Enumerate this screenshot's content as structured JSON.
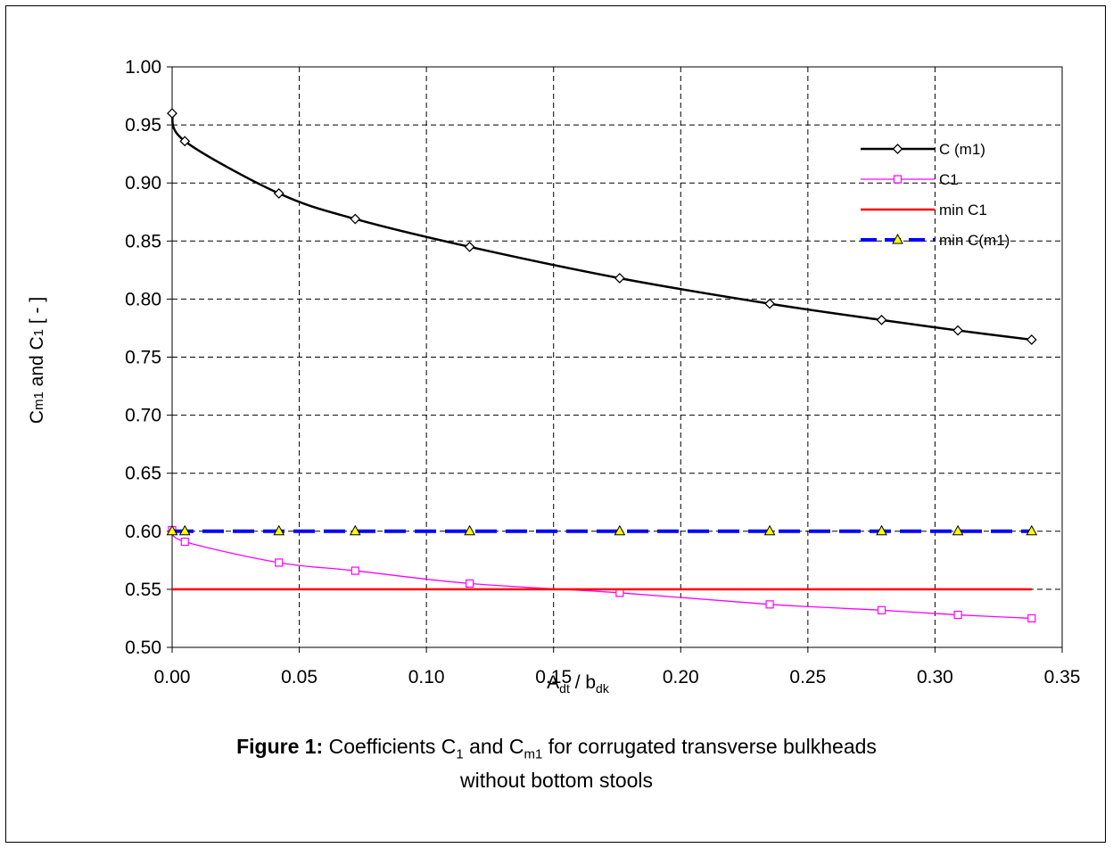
{
  "caption": {
    "label": "Figure 1:",
    "line1_a": " Coefficients C",
    "line1_sub1": "1",
    "line1_b": " and C",
    "line1_sub2": "m1",
    "line1_c": " for corrugated transverse bulkheads",
    "line2": "without bottom stools"
  },
  "chart_data": {
    "type": "line",
    "xlabel": {
      "main": "A",
      "sub1": "dt",
      "mid": " / b",
      "sub2": "dk"
    },
    "ylabel": {
      "a": "C",
      "sub1": "m1",
      "b": " and C",
      "sub2": "1",
      "c": "  [ - ]"
    },
    "xlim": [
      0,
      0.35
    ],
    "ylim": [
      0.5,
      1.0
    ],
    "xticks": [
      "0.00",
      "0.05",
      "0.10",
      "0.15",
      "0.20",
      "0.25",
      "0.30",
      "0.35"
    ],
    "yticks": [
      "0.50",
      "0.55",
      "0.60",
      "0.65",
      "0.70",
      "0.75",
      "0.80",
      "0.85",
      "0.90",
      "0.95",
      "1.00"
    ],
    "grid": true,
    "legend_position": "top-right",
    "series": [
      {
        "name": "C (m1)",
        "color": "#000000",
        "marker": "diamond",
        "style": "solid",
        "x": [
          0.0,
          0.005,
          0.042,
          0.072,
          0.117,
          0.176,
          0.235,
          0.279,
          0.309,
          0.338
        ],
        "y": [
          0.96,
          0.936,
          0.891,
          0.869,
          0.845,
          0.818,
          0.796,
          0.782,
          0.773,
          0.765
        ]
      },
      {
        "name": "C1",
        "color": "#ff00ff",
        "marker": "square",
        "style": "solid",
        "x": [
          0.0,
          0.005,
          0.042,
          0.072,
          0.117,
          0.176,
          0.235,
          0.279,
          0.309,
          0.338
        ],
        "y": [
          0.601,
          0.591,
          0.573,
          0.566,
          0.555,
          0.547,
          0.537,
          0.532,
          0.528,
          0.525
        ]
      },
      {
        "name": "min C1",
        "color": "#ff0000",
        "marker": "none",
        "style": "solid",
        "x": [
          0.0,
          0.338
        ],
        "y": [
          0.55,
          0.55
        ]
      },
      {
        "name": "min C(m1)",
        "color": "#0000ff",
        "marker": "triangle",
        "marker_fill": "#ffff00",
        "style": "dashed",
        "x": [
          0.0,
          0.005,
          0.042,
          0.072,
          0.117,
          0.176,
          0.235,
          0.279,
          0.309,
          0.338
        ],
        "y": [
          0.6,
          0.6,
          0.6,
          0.6,
          0.6,
          0.6,
          0.6,
          0.6,
          0.6,
          0.6
        ]
      }
    ]
  }
}
